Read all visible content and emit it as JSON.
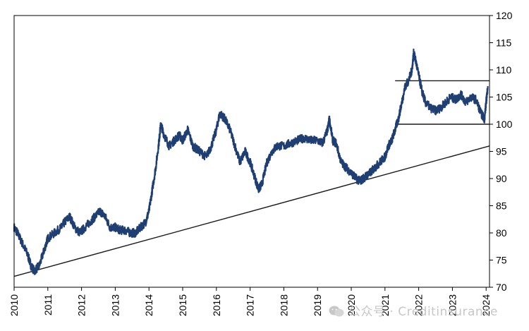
{
  "watermark": {
    "text": "公众号 · Creditinsurance"
  },
  "chart_data": {
    "type": "line",
    "title": "",
    "xlabel": "",
    "ylabel": "",
    "xlim": [
      2010,
      2024.1
    ],
    "ylim": [
      70,
      120
    ],
    "yticks": [
      70,
      75,
      80,
      85,
      90,
      95,
      100,
      105,
      110,
      115,
      120
    ],
    "xticks": [
      "2010",
      "2011",
      "2012",
      "2013",
      "2014",
      "2015",
      "2016",
      "2017",
      "2018",
      "2019",
      "2020",
      "2021",
      "2022",
      "2023",
      "2024"
    ],
    "grid": false,
    "legend": "none",
    "series_color": "#1f3f73",
    "series": [
      {
        "x": [
          2010.0,
          2010.1,
          2010.25,
          2010.4,
          2010.5,
          2010.6,
          2010.75,
          2010.9,
          2011.0,
          2011.2,
          2011.4,
          2011.5,
          2011.65,
          2011.8,
          2011.95,
          2012.1,
          2012.25,
          2012.4,
          2012.55,
          2012.7,
          2012.85,
          2013.0,
          2013.15,
          2013.3,
          2013.45,
          2013.6,
          2013.75,
          2013.9,
          2014.0,
          2014.1,
          2014.2,
          2014.3,
          2014.35,
          2014.45,
          2014.6,
          2014.75,
          2014.9,
          2015.0,
          2015.15,
          2015.3,
          2015.5,
          2015.7,
          2015.85,
          2016.0,
          2016.1,
          2016.25,
          2016.4,
          2016.55,
          2016.7,
          2016.85,
          2017.0,
          2017.15,
          2017.25,
          2017.35,
          2017.5,
          2017.65,
          2017.8,
          2018.0,
          2018.2,
          2018.4,
          2018.6,
          2018.8,
          2019.0,
          2019.15,
          2019.3,
          2019.35,
          2019.45,
          2019.55,
          2019.7,
          2019.85,
          2020.0,
          2020.15,
          2020.25,
          2020.35,
          2020.45,
          2020.55,
          2020.7,
          2020.85,
          2021.0,
          2021.1,
          2021.2,
          2021.3,
          2021.4,
          2021.5,
          2021.6,
          2021.7,
          2021.8,
          2021.85,
          2021.9,
          2022.0,
          2022.1,
          2022.2,
          2022.35,
          2022.5,
          2022.65,
          2022.8,
          2022.95,
          2023.1,
          2023.25,
          2023.4,
          2023.55,
          2023.7,
          2023.85,
          2023.95,
          2024.0,
          2024.05
        ],
        "y": [
          81,
          80,
          78,
          76,
          74,
          73,
          74,
          77,
          79,
          80,
          81,
          82,
          83,
          81,
          80,
          81,
          82,
          83,
          84,
          83,
          81,
          81,
          80.5,
          80.5,
          80,
          80,
          81,
          82,
          84,
          88,
          92,
          97,
          100,
          98,
          96,
          97,
          98,
          97,
          99,
          96,
          95,
          94,
          96,
          99,
          102,
          101,
          99,
          96,
          93,
          95,
          93,
          90,
          88,
          89,
          93,
          95,
          96,
          96,
          96.5,
          97,
          97.5,
          97,
          97,
          96.5,
          99,
          101,
          97,
          96.5,
          93,
          92,
          91,
          90,
          89.5,
          90,
          90.5,
          91,
          92,
          93,
          94,
          96,
          97,
          99,
          101,
          104,
          107,
          108,
          110,
          113,
          112,
          109,
          106,
          104,
          103,
          102.5,
          103,
          104,
          105,
          104.5,
          105.5,
          104,
          105,
          104.5,
          102,
          101,
          104,
          107
        ]
      }
    ],
    "reference_lines": [
      {
        "type": "trend",
        "from": [
          2010.0,
          72
        ],
        "to": [
          2024.1,
          96
        ]
      },
      {
        "type": "horizontal",
        "y": 108,
        "x_from": 2021.3,
        "x_to": 2024.1
      },
      {
        "type": "horizontal",
        "y": 100,
        "x_from": 2021.3,
        "x_to": 2024.1
      }
    ]
  }
}
